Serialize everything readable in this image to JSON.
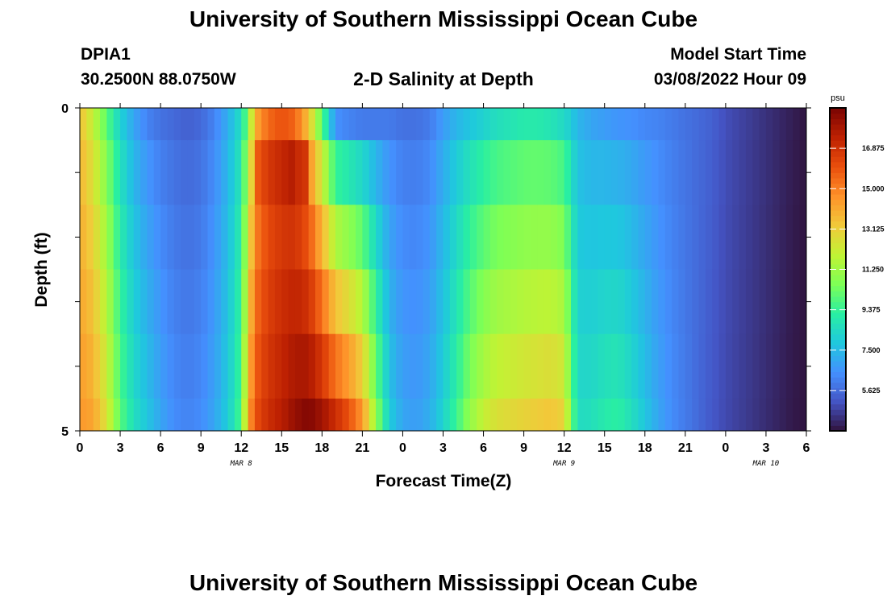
{
  "header": {
    "title": "University of Southern Mississippi Ocean Cube",
    "station_id": "DPIA1",
    "station_coords": "30.2500N  88.0750W",
    "subtitle": "2-D Salinity at Depth",
    "model_start_label": "Model Start Time",
    "model_start_value": "03/08/2022 Hour 09"
  },
  "footer": {
    "title": "University of Southern Mississippi Ocean Cube"
  },
  "chart_data": {
    "type": "heatmap",
    "title": "2-D Salinity at Depth",
    "xlabel": "Forecast Time(Z)",
    "ylabel": "Depth (ft)",
    "x_tick_labels": [
      "0",
      "3",
      "6",
      "9",
      "12",
      "15",
      "18",
      "21",
      "0",
      "3",
      "6",
      "9",
      "12",
      "15",
      "18",
      "21",
      "0",
      "3",
      "6"
    ],
    "x_hours": [
      0,
      3,
      6,
      9,
      12,
      15,
      18,
      21,
      24,
      27,
      30,
      33,
      36,
      39,
      42,
      45,
      48,
      51,
      54
    ],
    "date_labels": [
      {
        "label": "MAR 8",
        "hour": 12
      },
      {
        "label": "MAR 9",
        "hour": 36
      },
      {
        "label": "MAR 10",
        "hour": 51
      }
    ],
    "xlim": [
      0,
      54
    ],
    "ylim": [
      0,
      5
    ],
    "y_tick_labels": [
      "0",
      "5"
    ],
    "y_ticks": [
      0,
      1,
      2,
      3,
      4,
      5
    ],
    "depth_levels": [
      0.25,
      1.0,
      2.0,
      3.0,
      4.0,
      5.0
    ],
    "colorbar": {
      "unit_label": "psu",
      "min": 3.75,
      "max": 18.75,
      "tick_labels": [
        "5.625",
        "7.500",
        "9.375",
        "11.250",
        "13.125",
        "15.000",
        "16.875"
      ],
      "ticks": [
        5.625,
        7.5,
        9.375,
        11.25,
        13.125,
        15.0,
        16.875
      ],
      "colors": [
        "#30123b",
        "#4454c4",
        "#4490fe",
        "#1fc8de",
        "#29efa2",
        "#7dff56",
        "#c1f334",
        "#f1ca3a",
        "#fe922a",
        "#ea4f0d",
        "#be2102",
        "#7a0403"
      ]
    },
    "salinity_profiles": {
      "hours": [
        0,
        1,
        2,
        3,
        4,
        5,
        6,
        7,
        8,
        9,
        10,
        11,
        12,
        12.5,
        13,
        14,
        15,
        16,
        17,
        18,
        19,
        20,
        21,
        22,
        23,
        24,
        25,
        26,
        27,
        28,
        29,
        30,
        31,
        32,
        33,
        34,
        35,
        36,
        36.5,
        37,
        38,
        39,
        40,
        41,
        42,
        43,
        44,
        45,
        46,
        47,
        48,
        49,
        50,
        51,
        52,
        53,
        54
      ],
      "surface": [
        13.5,
        12.0,
        10.0,
        8.2,
        7.0,
        6.2,
        5.8,
        5.6,
        5.4,
        5.6,
        6.2,
        7.2,
        8.6,
        10.5,
        14.0,
        15.5,
        16.0,
        15.6,
        13.5,
        10.0,
        6.5,
        6.2,
        6.0,
        6.0,
        6.0,
        5.8,
        5.8,
        6.0,
        6.8,
        7.4,
        7.8,
        8.2,
        8.6,
        8.8,
        9.0,
        9.0,
        8.8,
        8.4,
        8.0,
        7.4,
        7.0,
        6.8,
        6.6,
        6.5,
        6.3,
        6.2,
        6.0,
        5.8,
        5.6,
        5.4,
        5.0,
        4.8,
        4.6,
        4.4,
        4.2,
        4.0,
        3.8
      ],
      "bottom": [
        14.5,
        14.2,
        12.5,
        10.0,
        8.6,
        7.8,
        7.0,
        6.4,
        6.2,
        6.4,
        7.0,
        8.0,
        9.8,
        14.0,
        16.0,
        17.0,
        17.5,
        18.2,
        18.6,
        18.0,
        17.0,
        16.0,
        14.5,
        11.0,
        8.0,
        7.0,
        6.8,
        7.2,
        8.2,
        9.5,
        11.0,
        12.0,
        12.6,
        12.8,
        13.0,
        13.2,
        13.4,
        13.0,
        10.5,
        8.5,
        8.6,
        9.0,
        9.2,
        8.6,
        7.8,
        7.0,
        6.4,
        6.0,
        5.6,
        5.2,
        4.9,
        4.7,
        4.5,
        4.3,
        4.1,
        3.9,
        3.8
      ]
    },
    "grid": false,
    "colorbar_position": "right"
  }
}
